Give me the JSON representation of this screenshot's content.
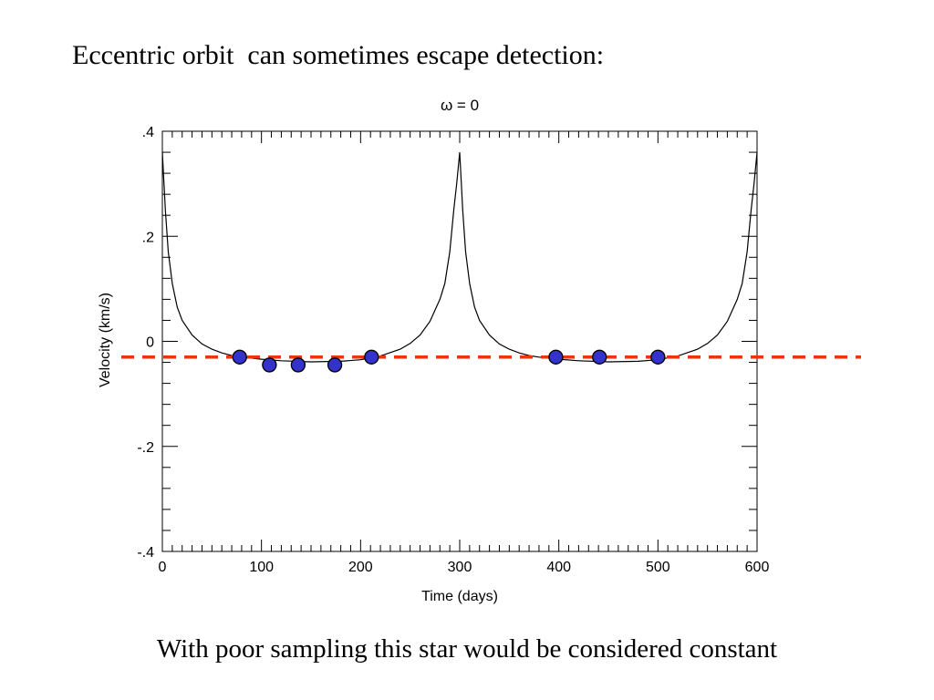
{
  "slide": {
    "title": "Eccentric orbit  can sometimes escape detection:",
    "caption": "With poor sampling this star would be considered constant"
  },
  "chart_data": {
    "type": "line",
    "title": "ω = 0",
    "xlabel": "Time (days)",
    "ylabel": "Velocity (km/s)",
    "xlim": [
      0,
      600
    ],
    "ylim": [
      -0.4,
      0.4
    ],
    "x_ticks": [
      0,
      100,
      200,
      300,
      400,
      500,
      600
    ],
    "x_tick_labels": [
      "0",
      "100",
      "200",
      "300",
      "400",
      "500",
      "600"
    ],
    "y_ticks": [
      -0.4,
      -0.2,
      0,
      0.2,
      0.4
    ],
    "y_tick_labels": [
      "-.4",
      "-.2",
      "0",
      ".2",
      ".4"
    ],
    "grid": false,
    "series": [
      {
        "kind": "curve",
        "color": "#000000",
        "period_days": 300,
        "peak_value": 0.36,
        "x": [
          0,
          3,
          6,
          10,
          15,
          20,
          30,
          40,
          50,
          60,
          70,
          80,
          100,
          120,
          150,
          180,
          200,
          220,
          240,
          250,
          260,
          270,
          280,
          285,
          290,
          294,
          297,
          300
        ],
        "values": [
          0.36,
          0.25,
          0.17,
          0.11,
          0.065,
          0.04,
          0.012,
          -0.005,
          -0.015,
          -0.022,
          -0.027,
          -0.03,
          -0.034,
          -0.037,
          -0.039,
          -0.038,
          -0.035,
          -0.028,
          -0.015,
          -0.004,
          0.012,
          0.038,
          0.08,
          0.11,
          0.17,
          0.25,
          0.3,
          0.36
        ]
      },
      {
        "kind": "points",
        "color": "#3333cc",
        "x": [
          78,
          108,
          137,
          174,
          211,
          397,
          441,
          500
        ],
        "values": [
          -0.03,
          -0.045,
          -0.045,
          -0.045,
          -0.03,
          -0.03,
          -0.03,
          -0.03
        ]
      },
      {
        "kind": "constant-line",
        "color": "#ee3311",
        "style": "dashed",
        "value": -0.03
      }
    ]
  }
}
